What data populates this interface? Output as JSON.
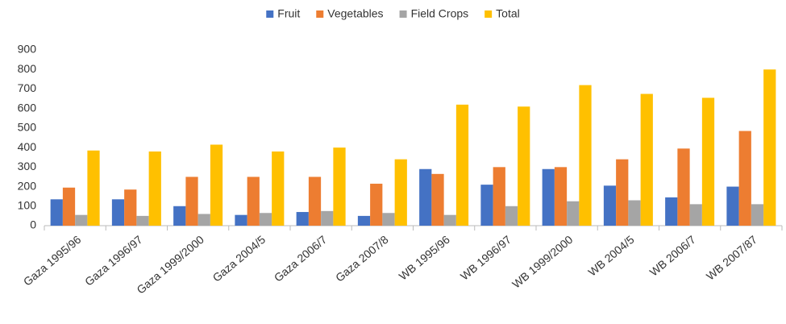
{
  "chart_data": {
    "type": "bar",
    "categories": [
      "Gaza 1995/96",
      "Gaza 1996/97",
      "Gaza 1999/2000",
      "Gaza 2004/5",
      "Gaza 2006/7",
      "Gaza 2007/8",
      "WB 1995/96",
      "WB 1996/97",
      "WB 1999/2000",
      "WB 2004/5",
      "WB 2006/7",
      "WB 2007/87"
    ],
    "series": [
      {
        "name": "Fruit",
        "color": "#4472c4",
        "values": [
          135,
          135,
          100,
          55,
          70,
          50,
          290,
          210,
          290,
          205,
          145,
          200
        ]
      },
      {
        "name": "Vegetables",
        "color": "#ed7d31",
        "values": [
          195,
          185,
          250,
          250,
          250,
          215,
          265,
          300,
          300,
          340,
          395,
          485
        ]
      },
      {
        "name": "Field Crops",
        "color": "#a5a5a5",
        "values": [
          55,
          50,
          60,
          65,
          75,
          65,
          55,
          100,
          125,
          130,
          110,
          110
        ]
      },
      {
        "name": "Total",
        "color": "#ffc000",
        "values": [
          385,
          380,
          415,
          380,
          400,
          340,
          620,
          610,
          720,
          675,
          655,
          800
        ]
      }
    ],
    "ylim": [
      0,
      900
    ],
    "yticks": [
      0,
      100,
      200,
      300,
      400,
      500,
      600,
      700,
      800,
      900
    ],
    "legend": "top",
    "grid": false
  }
}
